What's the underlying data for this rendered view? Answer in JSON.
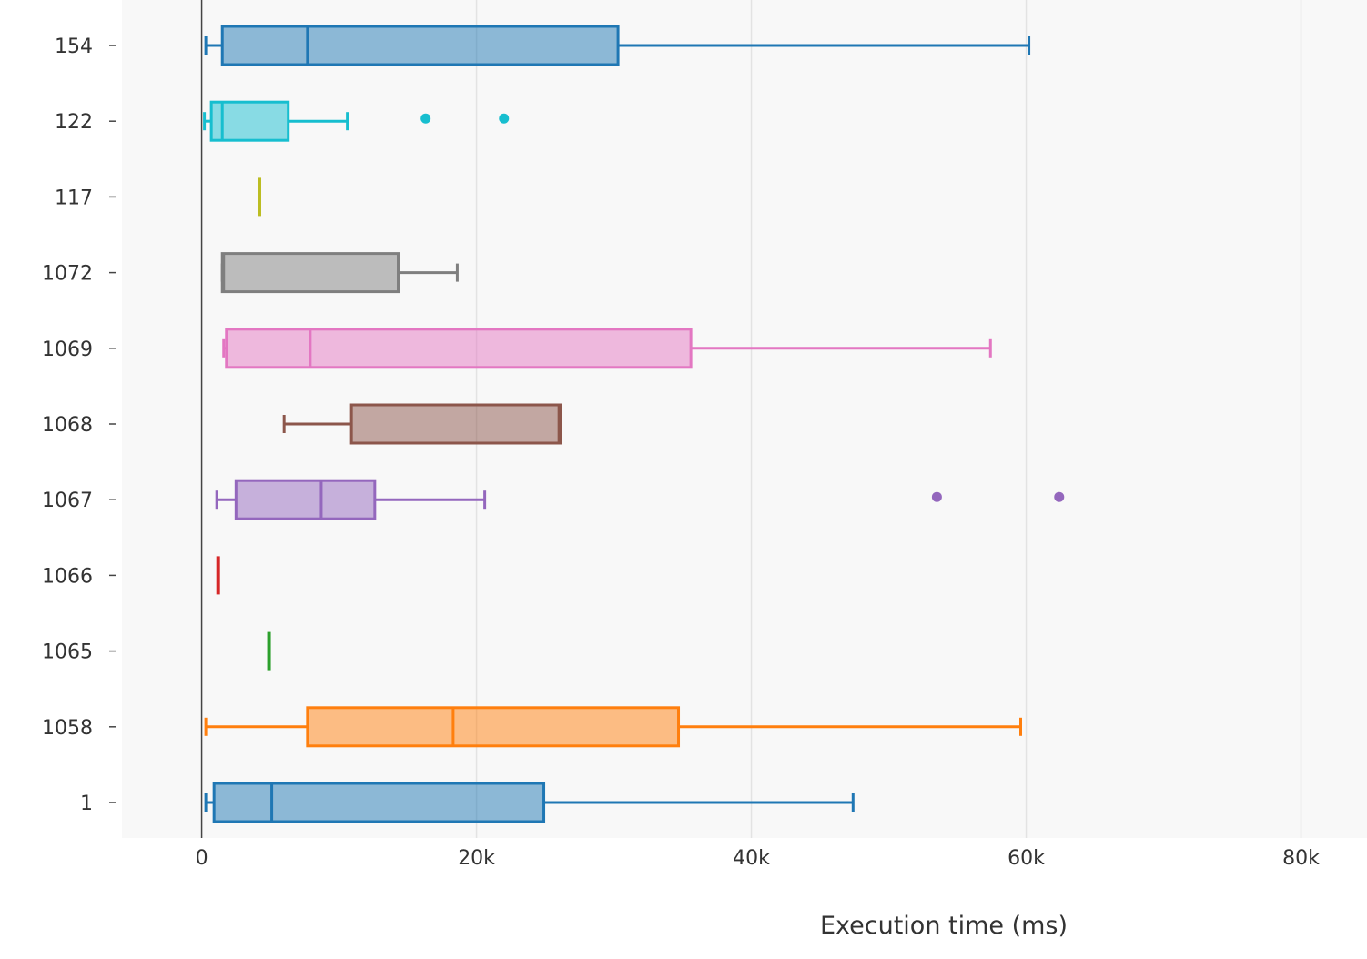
{
  "chart_data": {
    "type": "box",
    "orientation": "horizontal",
    "title": "",
    "xlabel": "Execution time (ms)",
    "ylabel": "",
    "xlim": [
      -5800,
      84800
    ],
    "xticks": [
      0,
      20000,
      40000,
      60000,
      80000
    ],
    "xtick_labels": [
      "0",
      "20k",
      "40k",
      "60k",
      "80k"
    ],
    "grid": "vertical",
    "legend": "none",
    "categories": [
      "154",
      "122",
      "117",
      "1072",
      "1069",
      "1068",
      "1067",
      "1066",
      "1065",
      "1058",
      "1"
    ],
    "series": [
      {
        "category": "154",
        "color": "#1f77b4",
        "min": 300,
        "q1": 1500,
        "median": 7700,
        "q3": 30300,
        "max": 60200,
        "outliers": []
      },
      {
        "category": "122",
        "color": "#17becf",
        "min": 200,
        "q1": 700,
        "median": 1500,
        "q3": 6300,
        "max": 10600,
        "outliers": [
          16300,
          22000
        ]
      },
      {
        "category": "117",
        "color": "#bcbd22",
        "min": 4200,
        "q1": 4200,
        "median": 4200,
        "q3": 4200,
        "max": 4200,
        "outliers": []
      },
      {
        "category": "1072",
        "color": "#7f7f7f",
        "min": 1500,
        "q1": 1500,
        "median": 1600,
        "q3": 14300,
        "max": 18600,
        "outliers": []
      },
      {
        "category": "1069",
        "color": "#e377c2",
        "min": 1600,
        "q1": 1800,
        "median": 7900,
        "q3": 35600,
        "max": 57400,
        "outliers": []
      },
      {
        "category": "1068",
        "color": "#8c564b",
        "min": 6000,
        "q1": 10900,
        "median": 26000,
        "q3": 26100,
        "max": 26100,
        "outliers": []
      },
      {
        "category": "1067",
        "color": "#9467bd",
        "min": 1100,
        "q1": 2500,
        "median": 8700,
        "q3": 12600,
        "max": 20600,
        "outliers": [
          53500,
          62400
        ]
      },
      {
        "category": "1066",
        "color": "#d62728",
        "min": 1200,
        "q1": 1200,
        "median": 1200,
        "q3": 1200,
        "max": 1200,
        "outliers": []
      },
      {
        "category": "1065",
        "color": "#2ca02c",
        "min": 4900,
        "q1": 4900,
        "median": 4900,
        "q3": 4900,
        "max": 4900,
        "outliers": []
      },
      {
        "category": "1058",
        "color": "#ff7f0e",
        "min": 300,
        "q1": 7700,
        "median": 18300,
        "q3": 34700,
        "max": 59600,
        "outliers": []
      },
      {
        "category": "1",
        "color": "#1f77b4",
        "min": 300,
        "q1": 900,
        "median": 5100,
        "q3": 24900,
        "max": 47400,
        "outliers": []
      }
    ]
  }
}
